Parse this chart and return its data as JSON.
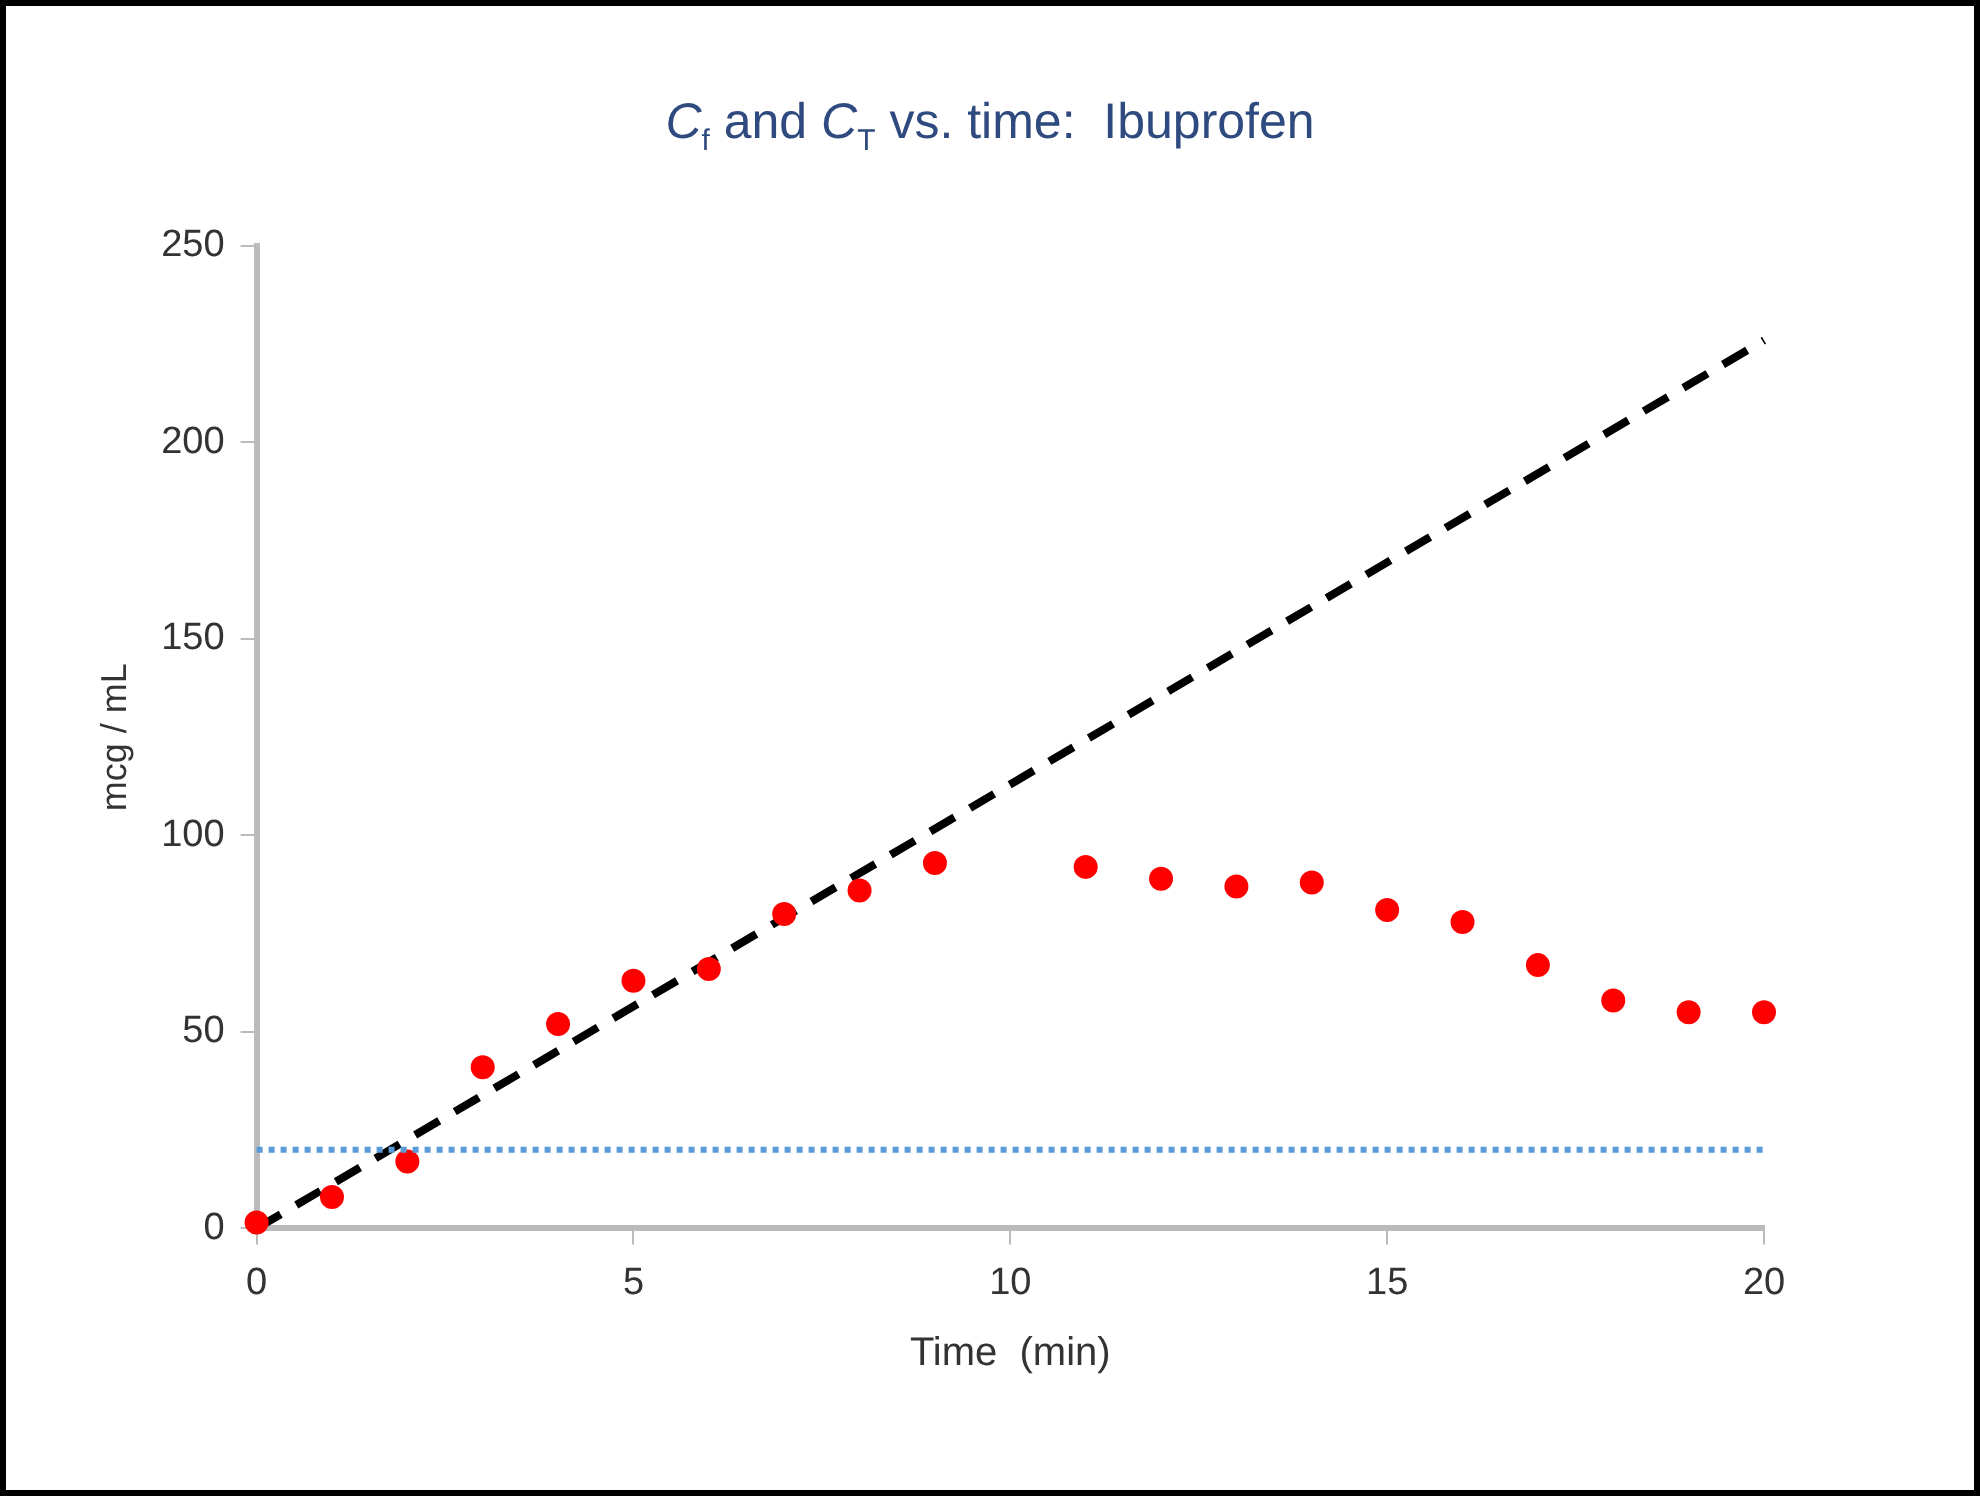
{
  "chart_data": {
    "type": "scatter",
    "title": "C$_{f}$ and C$_{T}$ vs. time:  Ibuprofen",
    "xlabel": "Time  (min)",
    "ylabel": "mcg / mL",
    "series": [
      {
        "color": "#ff0000",
        "marker": "circle",
        "x": [
          0,
          1,
          2,
          3,
          4,
          5,
          6,
          7,
          8,
          9,
          11,
          12,
          13,
          14,
          15,
          16,
          17,
          18,
          19,
          20
        ],
        "values": [
          1.5,
          8,
          17,
          41,
          52,
          63,
          66,
          80,
          86,
          93,
          92,
          89,
          87,
          88,
          81,
          78,
          67,
          58,
          55,
          55
        ]
      },
      {
        "type": "line",
        "color": "#000000",
        "line_style": "dashed",
        "marker": "none",
        "x": [
          0,
          20
        ],
        "values": [
          0,
          226
        ]
      }
    ],
    "ref_lines": [
      {
        "axis": "y",
        "value": 20,
        "color": "#5b9bd5",
        "line_style": "dotted"
      }
    ],
    "xlim": [
      0,
      20
    ],
    "xticks": [
      0,
      5,
      10,
      15,
      20
    ],
    "ylim": [
      0,
      250
    ],
    "yticks": [
      0,
      50,
      100,
      150,
      200,
      250
    ],
    "grid": false,
    "legend": false
  }
}
